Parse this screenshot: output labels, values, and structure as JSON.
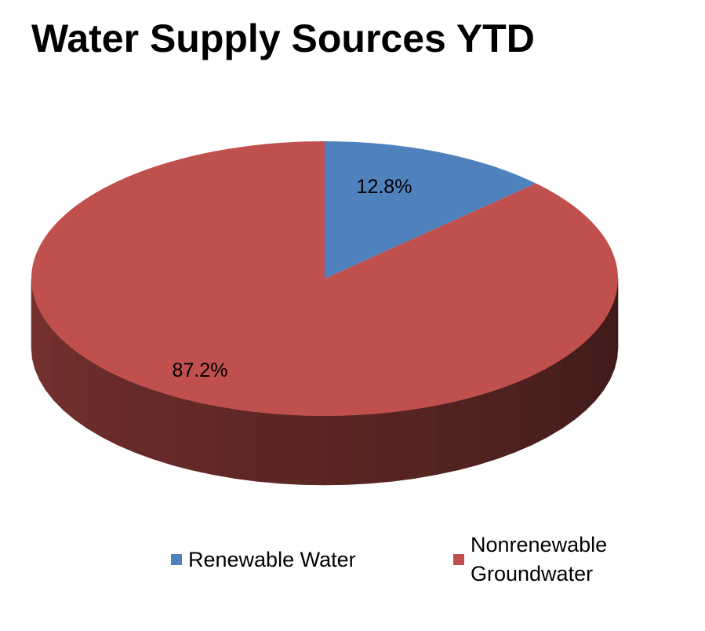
{
  "chart_data": {
    "type": "pie",
    "title": "Water Supply Sources YTD",
    "slices": [
      {
        "name": "Renewable Water",
        "value": 12.8,
        "label": "12.8%",
        "color": "#4F81BD"
      },
      {
        "name": "Nonrenewable Groundwater",
        "value": 87.2,
        "label": "87.2%",
        "color": "#C0504D"
      }
    ],
    "legend": {
      "placement": "bottom",
      "items": [
        {
          "label": "Renewable Water",
          "color": "#4F81BD"
        },
        {
          "label_lines": [
            "Nonrenewable",
            "Groundwater"
          ],
          "color": "#C0504D"
        }
      ]
    },
    "style": "3d"
  }
}
